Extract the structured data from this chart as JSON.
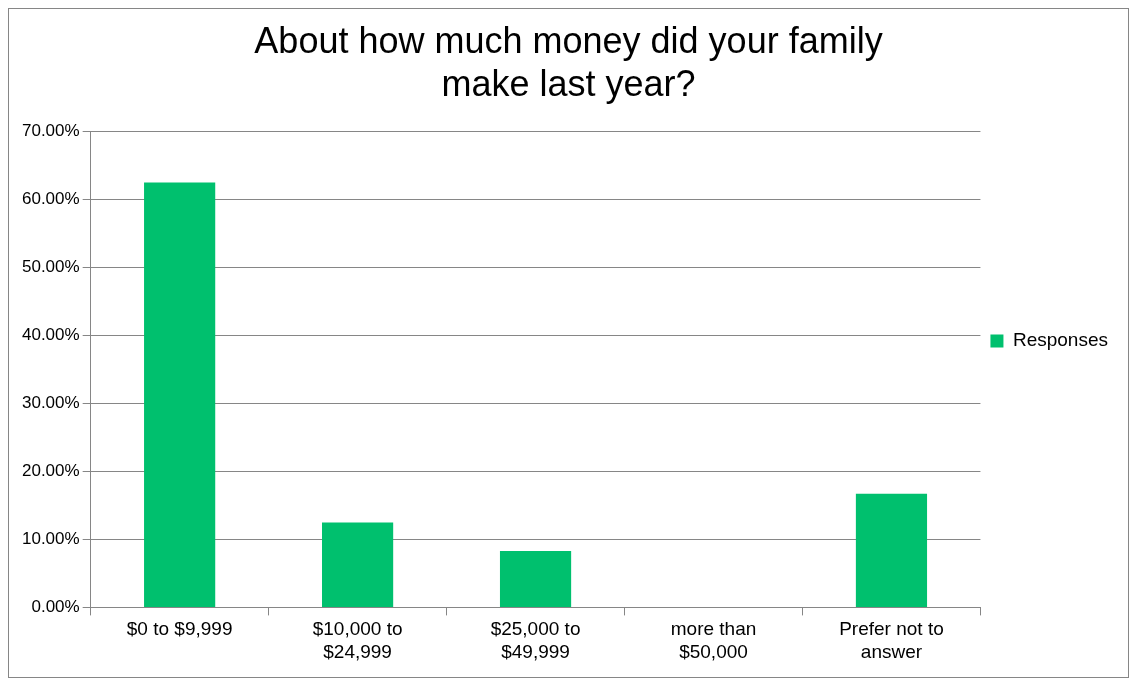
{
  "chart_data": {
    "type": "bar",
    "title": "About how much money did your family make last year?",
    "categories": [
      "$0 to $9,999",
      "$10,000 to $24,999",
      "$25,000 to $49,999",
      "more than $50,000",
      "Prefer not to answer"
    ],
    "series": [
      {
        "name": "Responses",
        "color": "#00c06e",
        "values": [
          62.5,
          12.5,
          8.3,
          0,
          16.7
        ]
      }
    ],
    "ylim": [
      0,
      70
    ],
    "yticks": [
      {
        "value": 0,
        "label": "0.00%"
      },
      {
        "value": 10,
        "label": "10.00%"
      },
      {
        "value": 20,
        "label": "20.00%"
      },
      {
        "value": 30,
        "label": "30.00%"
      },
      {
        "value": 40,
        "label": "40.00%"
      },
      {
        "value": 50,
        "label": "50.00%"
      },
      {
        "value": 60,
        "label": "60.00%"
      },
      {
        "value": 70,
        "label": "70.00%"
      }
    ],
    "grid": "y",
    "legend": "right"
  }
}
